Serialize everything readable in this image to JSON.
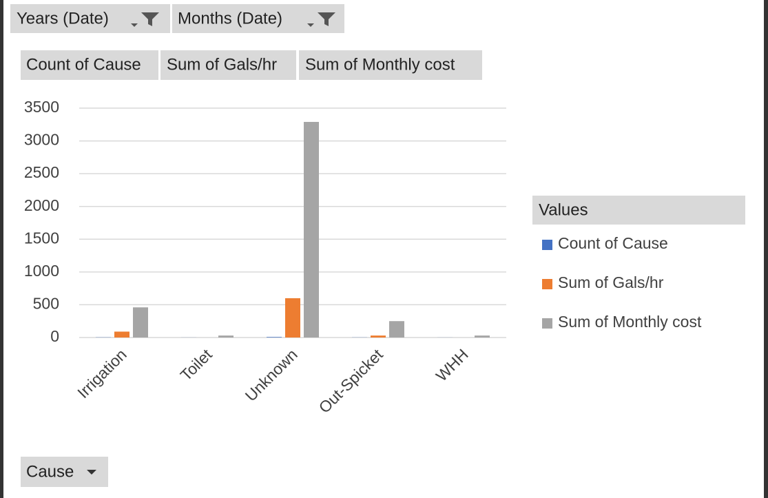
{
  "chart_data": {
    "type": "bar",
    "filters": [
      "Years (Date)",
      "Months (Date)"
    ],
    "axis_field": "Cause",
    "legend_title": "Values",
    "categories": [
      "Irrigation",
      "Toilet",
      "Unknown",
      "Out-Spicket",
      "WHH"
    ],
    "series": [
      {
        "name": "Count of Cause",
        "color": "#4472c4",
        "values": [
          3,
          1,
          8,
          2,
          1
        ]
      },
      {
        "name": "Sum of Gals/hr",
        "color": "#ed7d31",
        "values": [
          90,
          0,
          600,
          30,
          0
        ]
      },
      {
        "name": "Sum of Monthly cost",
        "color": "#a5a5a5",
        "values": [
          460,
          30,
          3290,
          250,
          30
        ]
      }
    ],
    "ylim": [
      0,
      3500
    ],
    "yticks": [
      0,
      500,
      1000,
      1500,
      2000,
      2500,
      3000,
      3500
    ],
    "grid": true,
    "legend": "right"
  }
}
